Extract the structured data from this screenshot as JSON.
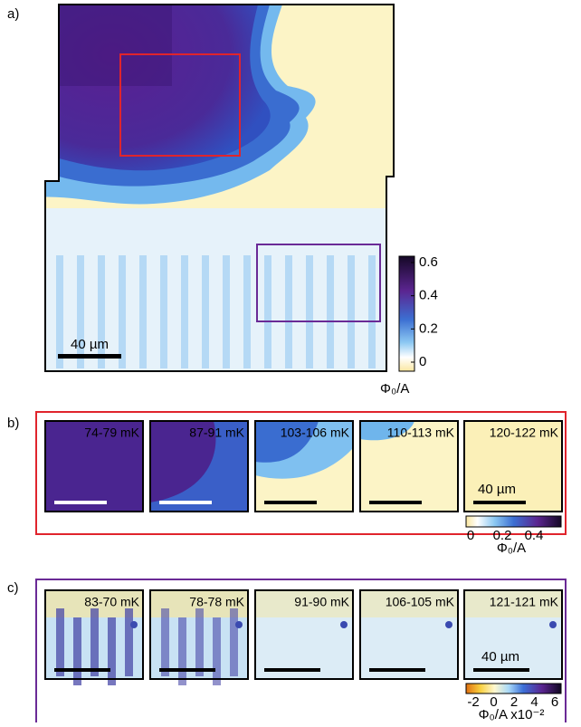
{
  "panel_a": {
    "label": "a)",
    "scale_bar": "40 µm",
    "colorbar": {
      "ticks": [
        0.6,
        0.4,
        0.2,
        0
      ],
      "unit": "Φ₀/A"
    }
  },
  "panel_b": {
    "label": "b)",
    "images": [
      {
        "label": "74-79 mK"
      },
      {
        "label": "87-91 mK"
      },
      {
        "label": "103-106 mK"
      },
      {
        "label": "110-113 mK"
      },
      {
        "label": "120-122 mK"
      }
    ],
    "scale_bar": "40 µm",
    "colorbar": {
      "ticks": [
        0,
        0.2,
        0.4
      ],
      "unit": "Φ₀/A"
    }
  },
  "panel_c": {
    "label": "c)",
    "images": [
      {
        "label": "83-70 mK"
      },
      {
        "label": "78-78 mK"
      },
      {
        "label": "91-90 mK"
      },
      {
        "label": "106-105  mK"
      },
      {
        "label": "121-121 mK"
      }
    ],
    "scale_bar": "40 µm",
    "colorbar": {
      "ticks": [
        -2,
        0,
        2,
        4,
        6
      ],
      "unit": "Φ₀/A x10⁻²"
    }
  }
}
